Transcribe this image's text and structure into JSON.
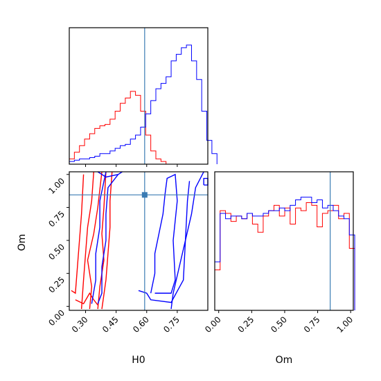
{
  "chart_data": {
    "type": "corner",
    "parameters": [
      "H0",
      "Om"
    ],
    "truths": {
      "H0": 0.59,
      "Om": 0.845
    },
    "ranges": {
      "H0": [
        0.22,
        0.9
      ],
      "Om": [
        -0.03,
        1.02
      ]
    },
    "ticks": {
      "H0": [
        "0.30",
        "0.45",
        "0.60",
        "0.75"
      ],
      "Om_y": [
        "0.00",
        "0.25",
        "0.50",
        "0.75",
        "1.00"
      ],
      "Om_x": [
        "0.00",
        "0.25",
        "0.50",
        "0.75",
        "1.00"
      ]
    },
    "colors": {
      "series_a": "#ff0000",
      "series_b": "#0000ff",
      "truth": "#3a7bb3"
    },
    "hist_H0": {
      "bin_width": 0.025,
      "series_a": {
        "start": 0.22,
        "counts": [
          0.04,
          0.09,
          0.14,
          0.19,
          0.23,
          0.27,
          0.29,
          0.3,
          0.34,
          0.4,
          0.46,
          0.5,
          0.55,
          0.52,
          0.4,
          0.22,
          0.1,
          0.04,
          0.02
        ]
      },
      "series_b": {
        "start": 0.22,
        "counts": [
          0.02,
          0.03,
          0.04,
          0.04,
          0.05,
          0.06,
          0.08,
          0.08,
          0.1,
          0.12,
          0.14,
          0.15,
          0.19,
          0.22,
          0.28,
          0.38,
          0.48,
          0.57,
          0.61,
          0.66,
          0.78,
          0.83,
          0.88,
          0.9,
          0.78,
          0.64,
          0.4,
          0.18,
          0.08
        ]
      }
    },
    "hist_Om": {
      "bin_width": 0.0408,
      "start": -0.03,
      "series_a": [
        0.3,
        0.74,
        0.72,
        0.66,
        0.7,
        0.68,
        0.72,
        0.64,
        0.58,
        0.7,
        0.74,
        0.78,
        0.7,
        0.76,
        0.64,
        0.76,
        0.74,
        0.8,
        0.78,
        0.62,
        0.72,
        0.74,
        0.78,
        0.68,
        0.72,
        0.46
      ],
      "series_b": [
        0.36,
        0.72,
        0.68,
        0.7,
        0.7,
        0.68,
        0.72,
        0.7,
        0.7,
        0.72,
        0.74,
        0.74,
        0.76,
        0.74,
        0.78,
        0.82,
        0.84,
        0.84,
        0.8,
        0.82,
        0.76,
        0.78,
        0.74,
        0.7,
        0.68,
        0.56
      ]
    },
    "contours_2d": {
      "series_a": [
        [
          [
            0.28,
            -0.02
          ],
          [
            0.29,
            0.2
          ],
          [
            0.3,
            0.4
          ],
          [
            0.31,
            0.6
          ],
          [
            0.33,
            0.8
          ],
          [
            0.34,
            1.02
          ]
        ],
        [
          [
            0.32,
            -0.02
          ],
          [
            0.33,
            0.15
          ],
          [
            0.31,
            0.35
          ],
          [
            0.34,
            0.55
          ],
          [
            0.36,
            0.75
          ],
          [
            0.38,
            1.02
          ]
        ],
        [
          [
            0.36,
            -0.02
          ],
          [
            0.37,
            0.15
          ],
          [
            0.39,
            0.35
          ],
          [
            0.38,
            0.55
          ],
          [
            0.39,
            0.75
          ],
          [
            0.4,
            1.02
          ]
        ],
        [
          [
            0.38,
            -0.02
          ],
          [
            0.4,
            0.2
          ],
          [
            0.41,
            0.4
          ],
          [
            0.42,
            0.6
          ],
          [
            0.42,
            0.8
          ],
          [
            0.43,
            1.02
          ]
        ],
        [
          [
            0.23,
            0.12
          ],
          [
            0.25,
            0.1
          ],
          [
            0.26,
            0.3
          ],
          [
            0.27,
            0.5
          ],
          [
            0.28,
            0.7
          ],
          [
            0.29,
            1.0
          ]
        ],
        [
          [
            0.25,
            0.05
          ],
          [
            0.29,
            0.02
          ],
          [
            0.32,
            0.1
          ],
          [
            0.34,
            0.05
          ],
          [
            0.36,
            0.01
          ]
        ]
      ],
      "series_b": [
        [
          [
            0.36,
            0.02
          ],
          [
            0.38,
            0.1
          ],
          [
            0.38,
            0.3
          ],
          [
            0.4,
            0.5
          ],
          [
            0.4,
            0.7
          ],
          [
            0.41,
            0.9
          ],
          [
            0.46,
            1.0
          ]
        ],
        [
          [
            0.33,
            0.02
          ],
          [
            0.35,
            0.2
          ],
          [
            0.35,
            0.4
          ],
          [
            0.37,
            0.6
          ],
          [
            0.37,
            0.8
          ],
          [
            0.4,
            1.02
          ]
        ],
        [
          [
            0.62,
            0.1
          ],
          [
            0.64,
            0.25
          ],
          [
            0.64,
            0.4
          ],
          [
            0.66,
            0.55
          ],
          [
            0.68,
            0.7
          ],
          [
            0.69,
            0.85
          ],
          [
            0.7,
            0.97
          ],
          [
            0.74,
            1.0
          ],
          [
            0.75,
            0.8
          ],
          [
            0.73,
            0.5
          ],
          [
            0.74,
            0.2
          ],
          [
            0.72,
            0.1
          ],
          [
            0.64,
            0.1
          ]
        ],
        [
          [
            0.56,
            0.12
          ],
          [
            0.6,
            0.1
          ],
          [
            0.62,
            0.05
          ],
          [
            0.72,
            0.03
          ],
          [
            0.78,
            0.2
          ],
          [
            0.79,
            0.5
          ],
          [
            0.8,
            0.8
          ],
          [
            0.81,
            0.95
          ]
        ],
        [
          [
            0.72,
            -0.02
          ],
          [
            0.73,
            0.1
          ],
          [
            0.76,
            0.3
          ],
          [
            0.79,
            0.5
          ],
          [
            0.82,
            0.7
          ],
          [
            0.84,
            0.9
          ],
          [
            0.88,
            1.02
          ]
        ],
        [
          [
            0.88,
            0.92
          ],
          [
            0.9,
            0.92
          ],
          [
            0.9,
            0.97
          ],
          [
            0.88,
            0.97
          ],
          [
            0.88,
            0.92
          ]
        ],
        [
          [
            0.36,
            1.02
          ],
          [
            0.4,
            0.98
          ],
          [
            0.46,
            1.0
          ],
          [
            0.48,
            1.02
          ]
        ]
      ]
    }
  },
  "labels": {
    "x_left": "H0",
    "x_right": "Om",
    "y_left": "Om"
  }
}
